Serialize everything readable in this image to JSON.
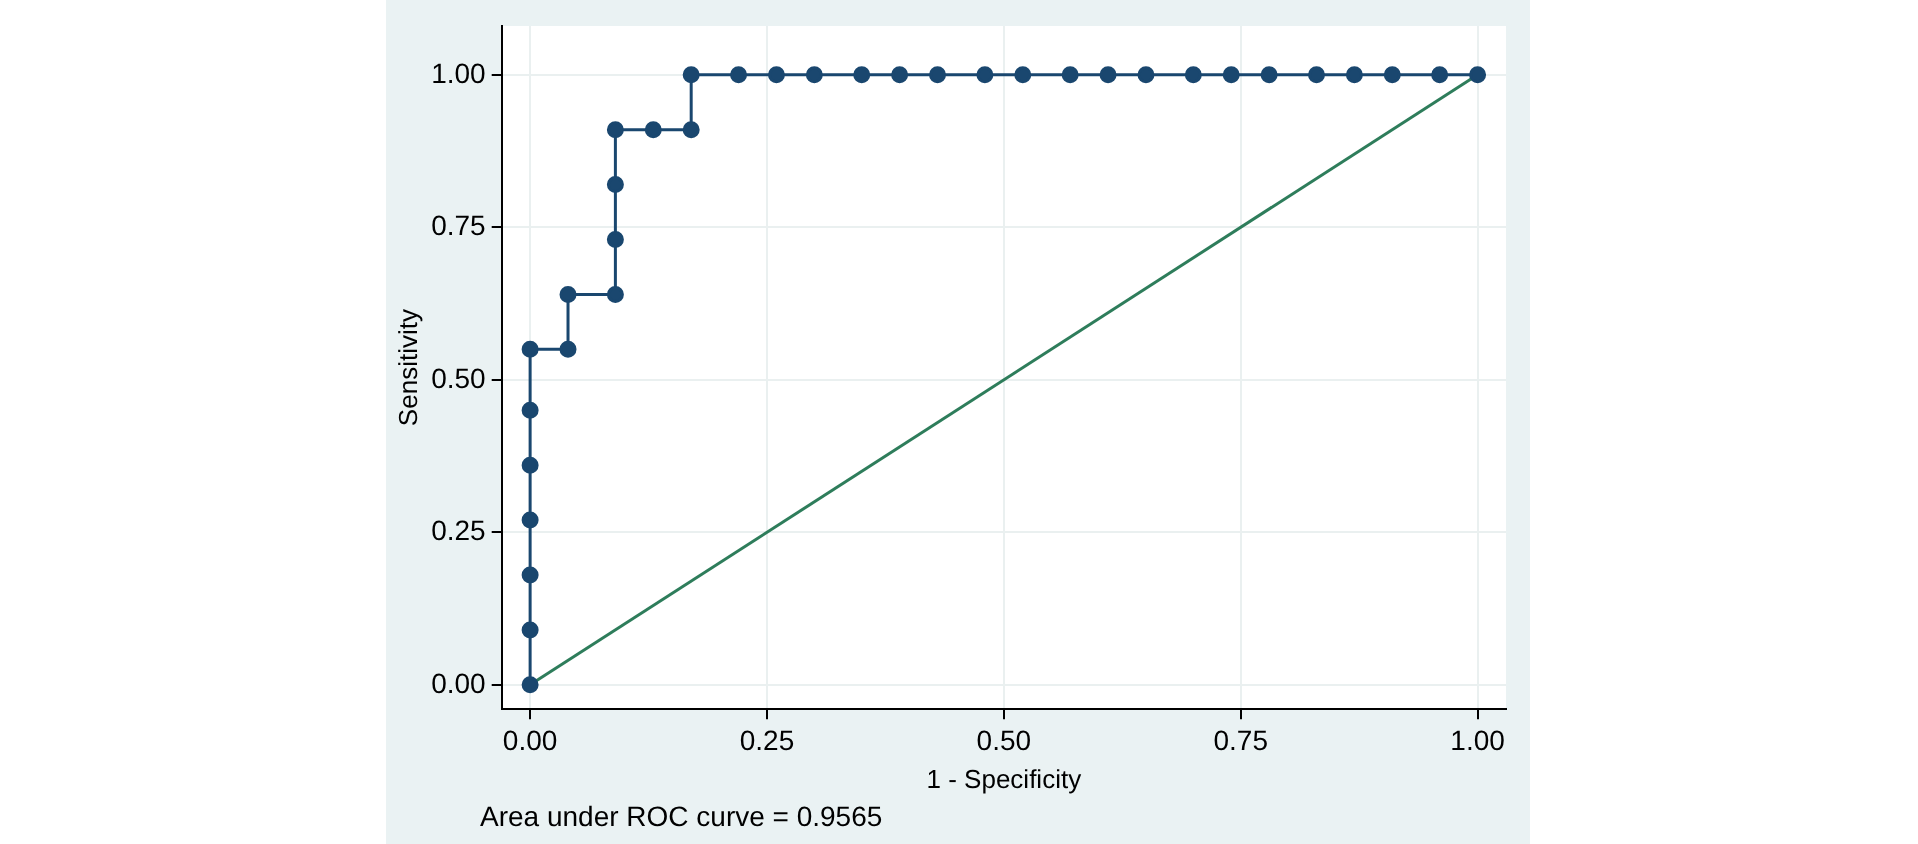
{
  "chart_data": {
    "type": "line",
    "xlabel": "1 - Specificity",
    "ylabel": "Sensitivity",
    "annotations": [
      "Area under ROC curve = 0.9565"
    ],
    "xlim": [
      -0.03,
      1.03
    ],
    "ylim": [
      -0.04,
      1.08
    ],
    "xticks": [
      {
        "value": 0,
        "label": "0.00"
      },
      {
        "value": 0.25,
        "label": "0.25"
      },
      {
        "value": 0.5,
        "label": "0.50"
      },
      {
        "value": 0.75,
        "label": "0.75"
      },
      {
        "value": 1,
        "label": "1.00"
      }
    ],
    "yticks": [
      {
        "value": 0,
        "label": "0.00"
      },
      {
        "value": 0.25,
        "label": "0.25"
      },
      {
        "value": 0.5,
        "label": "0.50"
      },
      {
        "value": 0.75,
        "label": "0.75"
      },
      {
        "value": 1,
        "label": "1.00"
      }
    ],
    "grid": true,
    "marker": "circle",
    "line_style": "solid",
    "series": [
      {
        "color": "#1a476f",
        "x": [
          0,
          0,
          0,
          0,
          0,
          0,
          0,
          0.04,
          0.04,
          0.09,
          0.09,
          0.09,
          0.09,
          0.13,
          0.17,
          0.17,
          0.22,
          0.26,
          0.3,
          0.35,
          0.39,
          0.43,
          0.48,
          0.52,
          0.57,
          0.61,
          0.65,
          0.7,
          0.74,
          0.78,
          0.83,
          0.87,
          0.91,
          0.96,
          1.0
        ],
        "values": [
          0,
          0.09,
          0.18,
          0.27,
          0.36,
          0.45,
          0.55,
          0.55,
          0.64,
          0.64,
          0.73,
          0.82,
          0.91,
          0.91,
          0.91,
          1,
          1,
          1,
          1,
          1,
          1,
          1,
          1,
          1,
          1,
          1,
          1,
          1,
          1,
          1,
          1,
          1,
          1,
          1,
          1
        ]
      },
      {
        "color": "#2e7d5b",
        "marker": "none",
        "x": [
          0,
          1
        ],
        "values": [
          0,
          1
        ]
      }
    ]
  }
}
